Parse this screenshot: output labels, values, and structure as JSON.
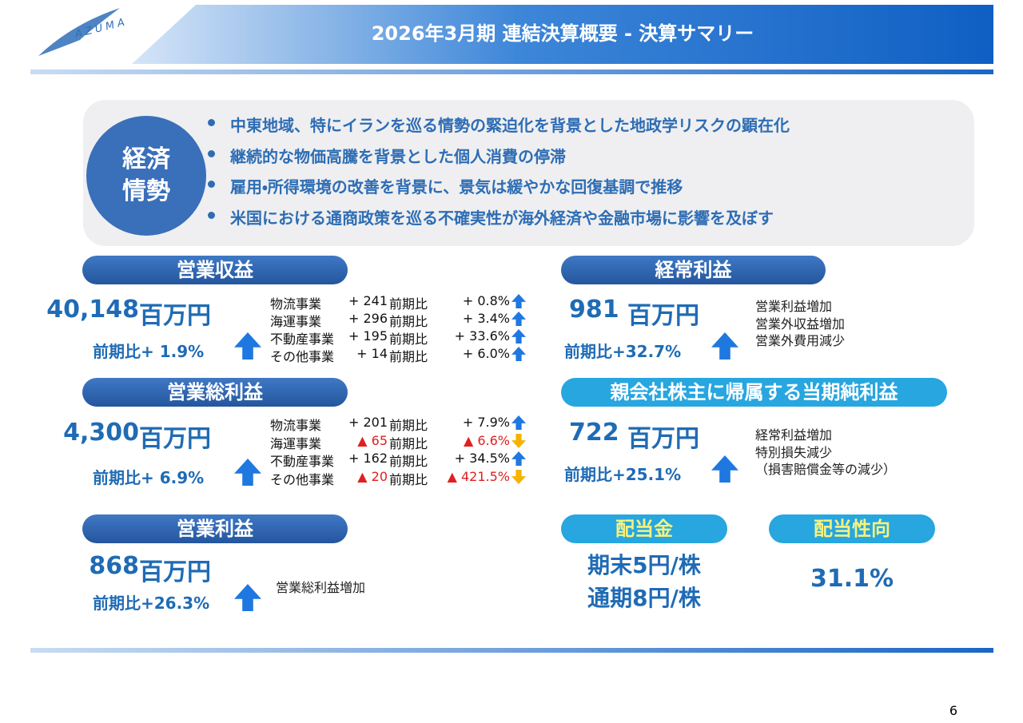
{
  "header": {
    "logo": "AZUMA",
    "title": "2026年3月期 連結決算概要 - 決算サマリー"
  },
  "economy": {
    "label_lines": [
      "経済",
      "情勢"
    ],
    "bullets": [
      "中東地域、特にイランを巡る情勢の緊迫化を背景とした地政学リスクの顕在化",
      "継続的な物価高騰を背景とした個人消費の停滞",
      "雇用・所得環境の改善を背景に、景気は緩やかな回復基調で推移",
      "米国における通商政策を巡る不確実性が海外経済や金融市場に影響を及ぼす"
    ]
  },
  "revenue": {
    "title": "営業収益",
    "amount": "40,148",
    "unit": "百万円",
    "yoy": "前期比+ 1.9%",
    "breakdown": [
      {
        "segment": "物流事業",
        "change": "+ 241",
        "yoy_label": "前期比",
        "yoy": "+ 0.8%",
        "direction": "up"
      },
      {
        "segment": "海運事業",
        "change": "+ 296",
        "yoy_label": "前期比",
        "yoy": "+ 3.4%",
        "direction": "up"
      },
      {
        "segment": "不動産事業",
        "change": "+ 195",
        "yoy_label": "前期比",
        "yoy": "+ 33.6%",
        "direction": "up"
      },
      {
        "segment": "その他事業",
        "change": "+ 14",
        "yoy_label": "前期比",
        "yoy": "+ 6.0%",
        "direction": "up"
      }
    ]
  },
  "gross_profit": {
    "title": "営業総利益",
    "amount": "4,300",
    "unit": "百万円",
    "yoy": "前期比+ 6.9%",
    "breakdown": [
      {
        "segment": "物流事業",
        "change": "+ 201",
        "yoy_label": "前期比",
        "yoy": "+ 7.9%",
        "direction": "up"
      },
      {
        "segment": "海運事業",
        "change": "▲ 65",
        "yoy_label": "前期比",
        "yoy": "▲ 6.6%",
        "direction": "down"
      },
      {
        "segment": "不動産事業",
        "change": "+ 162",
        "yoy_label": "前期比",
        "yoy": "+ 34.5%",
        "direction": "up"
      },
      {
        "segment": "その他事業",
        "change": "▲ 20",
        "yoy_label": "前期比",
        "yoy": "▲ 421.5%",
        "direction": "down"
      }
    ]
  },
  "operating_profit": {
    "title": "営業利益",
    "amount": "868",
    "unit": "百万円",
    "yoy": "前期比+26.3%",
    "notes": [
      "営業総利益増加"
    ]
  },
  "ordinary_profit": {
    "title": "経常利益",
    "amount": "981",
    "unit": "百万円",
    "yoy": "前期比+32.7%",
    "notes": [
      "営業利益増加",
      "営業外収益増加",
      "営業外費用減少"
    ]
  },
  "net_income": {
    "title": "親会社株主に帰属する当期純利益",
    "amount": "722",
    "unit": "百万円",
    "yoy": "前期比+25.1%",
    "notes": [
      "経常利益増加",
      "特別損失減少",
      "（損害賠償金等の減少）"
    ]
  },
  "dividend": {
    "title": "配当金",
    "lines": [
      "期末5円/株",
      "通期8円/株"
    ]
  },
  "payout_ratio": {
    "title": "配当性向",
    "value": "31.1%"
  },
  "page_number": "6"
}
